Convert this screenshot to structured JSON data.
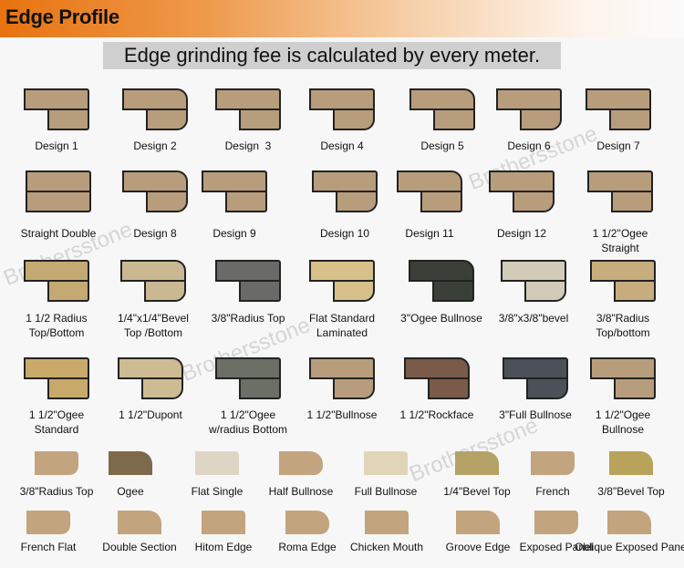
{
  "header": {
    "title": "Edge Profile",
    "color": "#e8730f"
  },
  "note": "Edge grinding fee is calculated by every meter.",
  "watermark": "Brothersstone",
  "rows": [
    {
      "items": [
        {
          "label": "Design 1",
          "color": "#b89d7c"
        },
        {
          "label": "Design 2",
          "color": "#b89d7c"
        },
        {
          "label": "Design  3",
          "color": "#b89d7c"
        },
        {
          "label": "Design 4",
          "color": "#b89d7c"
        },
        {
          "label": "Design 5",
          "color": "#b89d7c"
        },
        {
          "label": "Design 6",
          "color": "#b89d7c"
        },
        {
          "label": "Design 7",
          "color": "#b89d7c"
        }
      ]
    },
    {
      "items": [
        {
          "label": "Straight Double",
          "color": "#b89d7c"
        },
        {
          "label": "Design 8",
          "color": "#b89d7c"
        },
        {
          "label": "Design 9",
          "color": "#b89d7c"
        },
        {
          "label": "Design 10",
          "color": "#b89d7c"
        },
        {
          "label": "Design 11",
          "color": "#b89d7c"
        },
        {
          "label": "Design 12",
          "color": "#b89d7c"
        },
        {
          "label": "1 1/2''Ogee\nStraight",
          "color": "#b89d7c"
        }
      ]
    },
    {
      "items": [
        {
          "label": "1 1/2 Radius\nTop/Bottom",
          "color": "#c4aa72"
        },
        {
          "label": "1/4\"x1/4\"Bevel\nTop /Bottom",
          "color": "#c9b892"
        },
        {
          "label": "3/8\"Radius Top",
          "color": "#6a6a68"
        },
        {
          "label": "Flat Standard\nLaminated",
          "color": "#d7c08a"
        },
        {
          "label": "3\"Ogee Bullnose",
          "color": "#3a3f38"
        },
        {
          "label": "3/8\"x3/8\"bevel",
          "color": "#d2cbb8"
        },
        {
          "label": "3/8\"Radius\nTop/bottom",
          "color": "#c7ad7e"
        }
      ]
    },
    {
      "items": [
        {
          "label": "1 1/2\"Ogee\nStandard",
          "color": "#c9a96a"
        },
        {
          "label": "1 1/2\"Dupont",
          "color": "#cdbb93"
        },
        {
          "label": "1 1/2\"Ogee\nw/radius Bottom",
          "color": "#6c6f66"
        },
        {
          "label": "1 1/2\"Bullnose",
          "color": "#b89d7c"
        },
        {
          "label": "1 1/2\"Rockface",
          "color": "#7a5a48"
        },
        {
          "label": "3\"Full Bullnose",
          "color": "#4c5058"
        },
        {
          "label": "1 1/2\"Ogee\nBullnose",
          "color": "#b89d7c"
        }
      ]
    },
    {
      "items": [
        {
          "label": "3/8\"Radius Top",
          "color": "#c2a47f"
        },
        {
          "label": "Ogee",
          "color": "#7d6a4c"
        },
        {
          "label": "Flat Single",
          "color": "#ddd6c4"
        },
        {
          "label": "Half Bullnose",
          "color": "#c2a47f"
        },
        {
          "label": "Full Bullnose",
          "color": "#e0d5b6"
        },
        {
          "label": "1/4\"Bevel Top",
          "color": "#b4a266"
        },
        {
          "label": "French",
          "color": "#c2a47f"
        },
        {
          "label": "3/8\"Bevel Top",
          "color": "#b8a35a"
        }
      ]
    },
    {
      "items": [
        {
          "label": "French Flat",
          "color": "#c2a47f"
        },
        {
          "label": "Double Section",
          "color": "#c2a47f"
        },
        {
          "label": "Hitom Edge",
          "color": "#c2a47f"
        },
        {
          "label": "Roma Edge",
          "color": "#c2a47f"
        },
        {
          "label": "Chicken Mouth",
          "color": "#c2a47f"
        },
        {
          "label": "Groove Edge",
          "color": "#c2a47f"
        },
        {
          "label": "Exposed Panel",
          "color": "#c2a47f"
        },
        {
          "label": "Oblique Exposed Panel",
          "color": "#c2a47f"
        }
      ]
    }
  ]
}
